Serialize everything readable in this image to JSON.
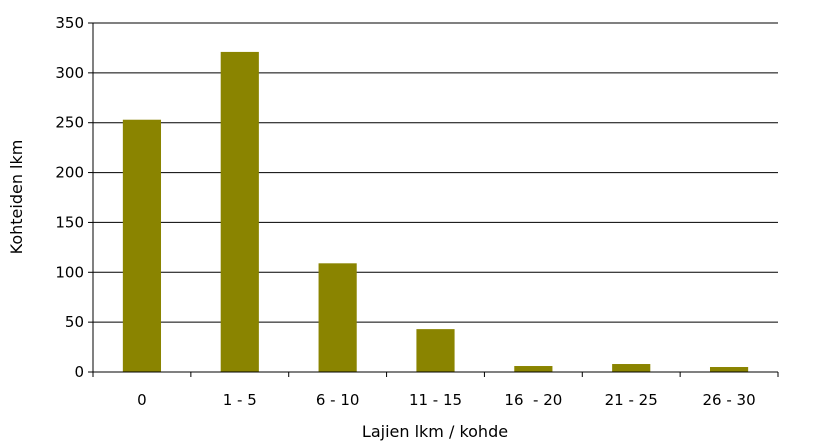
{
  "chart_data": {
    "type": "bar",
    "title": "",
    "xlabel": "Lajien lkm / kohde",
    "ylabel": "Kohteiden lkm",
    "categories": [
      "0",
      "1 - 5",
      "6 - 10",
      "11 - 15",
      "16  - 20",
      "21 - 25",
      "26 - 30"
    ],
    "values": [
      253,
      321,
      109,
      43,
      6,
      8,
      5
    ],
    "ylim": [
      0,
      350
    ],
    "yticks": [
      "0",
      "50",
      "100",
      "150",
      "200",
      "250",
      "300",
      "350"
    ],
    "grid": "horizontal",
    "legend": "none",
    "bar_color": "#8a8400"
  }
}
